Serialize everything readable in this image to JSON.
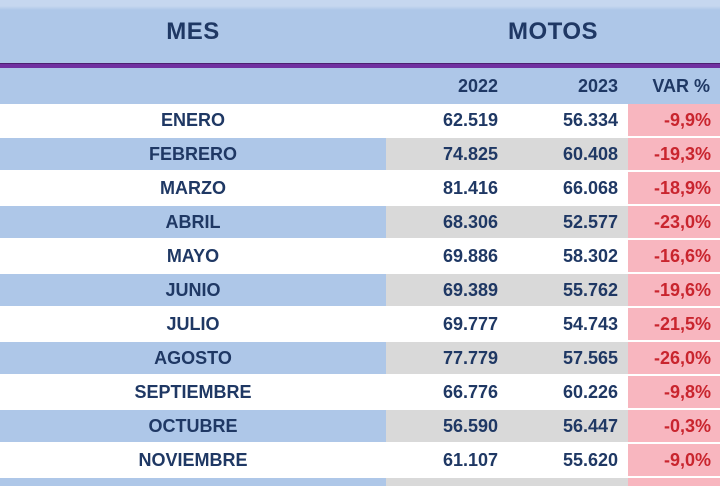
{
  "header": {
    "mes": "MES",
    "motos": "MOTOS"
  },
  "subheader": {
    "y2022": "2022",
    "y2023": "2023",
    "var": "VAR %"
  },
  "colors": {
    "header_blue": "#aec7e8",
    "divider_purple": "#7030a0",
    "navy_text": "#1f3864",
    "alt_gray": "#d9d9d9",
    "var_pink": "#f8b6bf",
    "var_red": "#c9252e",
    "row_white": "#ffffff"
  },
  "chart_data": {
    "type": "table",
    "title": "MES / MOTOS",
    "columns": [
      "MES",
      "2022",
      "2023",
      "VAR %"
    ],
    "rows": [
      {
        "mes": "ENERO",
        "y2022": "62.519",
        "y2023": "56.334",
        "var": "-9,9%"
      },
      {
        "mes": "FEBRERO",
        "y2022": "74.825",
        "y2023": "60.408",
        "var": "-19,3%"
      },
      {
        "mes": "MARZO",
        "y2022": "81.416",
        "y2023": "66.068",
        "var": "-18,9%"
      },
      {
        "mes": "ABRIL",
        "y2022": "68.306",
        "y2023": "52.577",
        "var": "-23,0%"
      },
      {
        "mes": "MAYO",
        "y2022": "69.886",
        "y2023": "58.302",
        "var": "-16,6%"
      },
      {
        "mes": "JUNIO",
        "y2022": "69.389",
        "y2023": "55.762",
        "var": "-19,6%"
      },
      {
        "mes": "JULIO",
        "y2022": "69.777",
        "y2023": "54.743",
        "var": "-21,5%"
      },
      {
        "mes": "AGOSTO",
        "y2022": "77.779",
        "y2023": "57.565",
        "var": "-26,0%"
      },
      {
        "mes": "SEPTIEMBRE",
        "y2022": "66.776",
        "y2023": "60.226",
        "var": "-9,8%"
      },
      {
        "mes": "OCTUBRE",
        "y2022": "56.590",
        "y2023": "56.447",
        "var": "-0,3%"
      },
      {
        "mes": "NOVIEMBRE",
        "y2022": "61.107",
        "y2023": "55.620",
        "var": "-9,0%"
      }
    ],
    "series": [
      {
        "name": "2022",
        "values": [
          62519,
          74825,
          81416,
          68306,
          69886,
          69389,
          69777,
          77779,
          66776,
          56590,
          61107
        ]
      },
      {
        "name": "2023",
        "values": [
          56334,
          60408,
          66068,
          52577,
          58302,
          55762,
          54743,
          57565,
          60226,
          56447,
          55620
        ]
      },
      {
        "name": "VAR %",
        "values": [
          -9.9,
          -19.3,
          -18.9,
          -23.0,
          -16.6,
          -19.6,
          -21.5,
          -26.0,
          -9.8,
          -0.3,
          -9.0
        ]
      }
    ],
    "categories": [
      "ENERO",
      "FEBRERO",
      "MARZO",
      "ABRIL",
      "MAYO",
      "JUNIO",
      "JULIO",
      "AGOSTO",
      "SEPTIEMBRE",
      "OCTUBRE",
      "NOVIEMBRE"
    ]
  }
}
